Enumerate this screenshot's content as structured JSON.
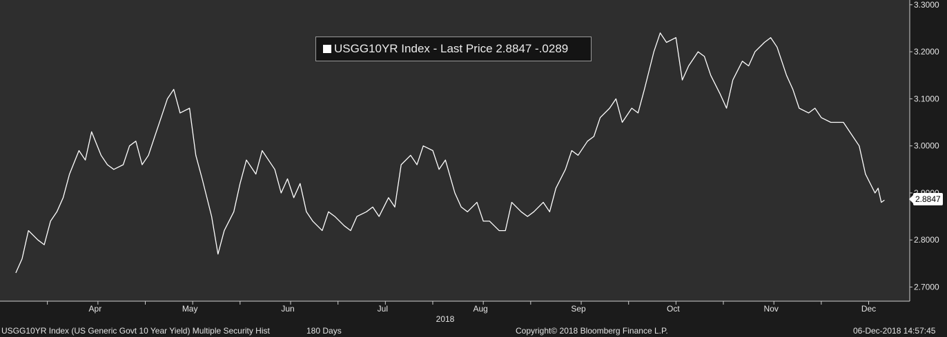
{
  "legend": {
    "text": "USGG10YR Index - Last Price 2.8847  -.0289",
    "swatch_color": "#ffffff"
  },
  "last_value_tag": "2.8847",
  "footer": {
    "description": "USGG10YR Index (US Generic Govt 10 Year Yield) Multiple Security Hist",
    "period": "180 Days",
    "copyright": "Copyright© 2018 Bloomberg Finance L.P.",
    "timestamp": "06-Dec-2018 14:57:45"
  },
  "colors": {
    "background": "#1b1b1b",
    "plot_background": "#2e2e2e",
    "line": "#ffffff"
  },
  "chart_data": {
    "type": "line",
    "title": "",
    "xlabel": "",
    "ylabel": "",
    "x_year_label": "2018",
    "x_tick_labels": [
      "Apr",
      "May",
      "Jun",
      "Jul",
      "Aug",
      "Sep",
      "Oct",
      "Nov",
      "Dec"
    ],
    "y_tick_labels": [
      "2.7000",
      "2.8000",
      "2.9000",
      "3.0000",
      "3.1000",
      "3.2000",
      "3.3000"
    ],
    "ylim": [
      2.67,
      3.31
    ],
    "y_axis_side": "right",
    "grid": false,
    "legend_position": "top-center",
    "series": [
      {
        "x": [
          "2018-03-06",
          "2018-03-08",
          "2018-03-10",
          "2018-03-13",
          "2018-03-15",
          "2018-03-17",
          "2018-03-19",
          "2018-03-21",
          "2018-03-23",
          "2018-03-26",
          "2018-03-28",
          "2018-03-30",
          "2018-04-02",
          "2018-04-04",
          "2018-04-06",
          "2018-04-09",
          "2018-04-11",
          "2018-04-13",
          "2018-04-15",
          "2018-04-17",
          "2018-04-19",
          "2018-04-21",
          "2018-04-23",
          "2018-04-25",
          "2018-04-27",
          "2018-04-30",
          "2018-05-02",
          "2018-05-04",
          "2018-05-07",
          "2018-05-09",
          "2018-05-11",
          "2018-05-14",
          "2018-05-16",
          "2018-05-18",
          "2018-05-21",
          "2018-05-23",
          "2018-05-25",
          "2018-05-27",
          "2018-05-29",
          "2018-05-31",
          "2018-06-02",
          "2018-06-04",
          "2018-06-06",
          "2018-06-08",
          "2018-06-11",
          "2018-06-13",
          "2018-06-15",
          "2018-06-18",
          "2018-06-20",
          "2018-06-22",
          "2018-06-25",
          "2018-06-27",
          "2018-06-29",
          "2018-07-02",
          "2018-07-04",
          "2018-07-06",
          "2018-07-09",
          "2018-07-11",
          "2018-07-13",
          "2018-07-16",
          "2018-07-18",
          "2018-07-20",
          "2018-07-23",
          "2018-07-25",
          "2018-07-27",
          "2018-07-30",
          "2018-08-01",
          "2018-08-03",
          "2018-08-06",
          "2018-08-08",
          "2018-08-10",
          "2018-08-13",
          "2018-08-15",
          "2018-08-17",
          "2018-08-20",
          "2018-08-22",
          "2018-08-24",
          "2018-08-27",
          "2018-08-29",
          "2018-08-31",
          "2018-09-03",
          "2018-09-05",
          "2018-09-07",
          "2018-09-10",
          "2018-09-12",
          "2018-09-14",
          "2018-09-17",
          "2018-09-19",
          "2018-09-21",
          "2018-09-24",
          "2018-09-26",
          "2018-09-28",
          "2018-10-01",
          "2018-10-03",
          "2018-10-05",
          "2018-10-08",
          "2018-10-10",
          "2018-10-12",
          "2018-10-15",
          "2018-10-17",
          "2018-10-19",
          "2018-10-22",
          "2018-10-24",
          "2018-10-26",
          "2018-10-29",
          "2018-10-31",
          "2018-11-02",
          "2018-11-05",
          "2018-11-07",
          "2018-11-09",
          "2018-11-12",
          "2018-11-14",
          "2018-11-16",
          "2018-11-19",
          "2018-11-21",
          "2018-11-23",
          "2018-11-26",
          "2018-11-28",
          "2018-11-30",
          "2018-12-03",
          "2018-12-04",
          "2018-12-05",
          "2018-12-06"
        ],
        "values": [
          2.73,
          2.76,
          2.82,
          2.8,
          2.79,
          2.84,
          2.86,
          2.89,
          2.94,
          2.99,
          2.97,
          3.03,
          2.98,
          2.96,
          2.95,
          2.96,
          3.0,
          3.01,
          2.96,
          2.98,
          3.02,
          3.06,
          3.1,
          3.12,
          3.07,
          3.08,
          2.98,
          2.93,
          2.85,
          2.77,
          2.82,
          2.86,
          2.92,
          2.97,
          2.94,
          2.99,
          2.97,
          2.95,
          2.9,
          2.93,
          2.89,
          2.92,
          2.86,
          2.84,
          2.82,
          2.86,
          2.85,
          2.83,
          2.82,
          2.85,
          2.86,
          2.87,
          2.85,
          2.89,
          2.87,
          2.96,
          2.98,
          2.96,
          3.0,
          2.99,
          2.95,
          2.97,
          2.9,
          2.87,
          2.86,
          2.88,
          2.84,
          2.84,
          2.82,
          2.82,
          2.88,
          2.86,
          2.85,
          2.86,
          2.88,
          2.86,
          2.91,
          2.95,
          2.99,
          2.98,
          3.01,
          3.02,
          3.06,
          3.08,
          3.1,
          3.05,
          3.08,
          3.07,
          3.12,
          3.2,
          3.24,
          3.22,
          3.23,
          3.14,
          3.17,
          3.2,
          3.19,
          3.15,
          3.11,
          3.08,
          3.14,
          3.18,
          3.17,
          3.2,
          3.22,
          3.23,
          3.21,
          3.15,
          3.12,
          3.08,
          3.07,
          3.08,
          3.06,
          3.05,
          3.05,
          3.05,
          3.02,
          3.0,
          2.94,
          2.9,
          2.91,
          2.88,
          2.8847
        ]
      }
    ]
  }
}
